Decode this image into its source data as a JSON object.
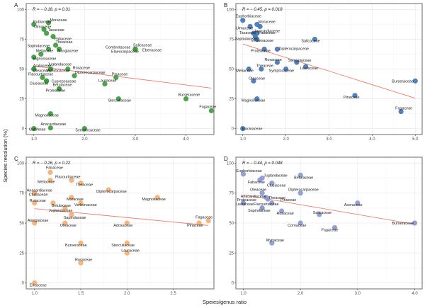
{
  "figure": {
    "ylabel": "Species resolution (%)",
    "xlabel": "Speies/genus ratio"
  },
  "chart_data": [
    {
      "type": "scatter",
      "panel": "A",
      "stat": "R = − 0.18, p = 0.31",
      "color": "#3a9a3a",
      "xlim": [
        0.85,
        4.55
      ],
      "ylim": [
        -5,
        105
      ],
      "xticks": [
        1.0,
        2.0,
        3.0,
        4.0
      ],
      "xtick_labels": [
        "1.0",
        "2.0",
        "3.0",
        "4.0"
      ],
      "yticks": [
        0,
        25,
        50,
        75,
        100
      ],
      "ytick_labels": [
        "0",
        "25",
        "50",
        "75",
        "100"
      ],
      "grid": true,
      "trend": {
        "x": [
          1.0,
          4.5
        ],
        "y": [
          52.5,
          34
        ]
      },
      "points": [
        {
          "name": "Rubiaceae",
          "x": 1.0,
          "y": 87.5
        },
        {
          "name": "Moraceae",
          "x": 1.29,
          "y": 88.9
        },
        {
          "name": "Ulmaceae",
          "x": 1.2,
          "y": 83.3
        },
        {
          "name": "Taxaceae",
          "x": 1.25,
          "y": 80
        },
        {
          "name": "Fabaceae",
          "x": 1.38,
          "y": 77.3
        },
        {
          "name": "Theaceae",
          "x": 1.43,
          "y": 70
        },
        {
          "name": "Sapindaceae",
          "x": 1.29,
          "y": 66.7
        },
        {
          "name": "Alangiaceae",
          "x": 1.5,
          "y": 66.7
        },
        {
          "name": "Meliaceae",
          "x": 1.14,
          "y": 62.5
        },
        {
          "name": "Bignoniaceae",
          "x": 1.0,
          "y": 60
        },
        {
          "name": "Araliaceae",
          "x": 1.0,
          "y": 50
        },
        {
          "name": "Oleaceae",
          "x": 1.0,
          "y": 50
        },
        {
          "name": "Juglandaceae",
          "x": 1.33,
          "y": 50
        },
        {
          "name": "Myristicaceae",
          "x": 1.33,
          "y": 50
        },
        {
          "name": "Rosaceae",
          "x": 1.67,
          "y": 50
        },
        {
          "name": "Flacourtiaceae",
          "x": 1.17,
          "y": 42.9
        },
        {
          "name": "Dipterocarpaceae",
          "x": 1.8,
          "y": 44.4
        },
        {
          "name": "Pinaceae",
          "x": 2.62,
          "y": 42.9
        },
        {
          "name": "Clusiaceae",
          "x": 1.25,
          "y": 40
        },
        {
          "name": "Cupressaceae",
          "x": 1.25,
          "y": 40
        },
        {
          "name": "Lauraceae",
          "x": 2.4,
          "y": 37.5
        },
        {
          "name": "Betulaceae",
          "x": 1.5,
          "y": 33.3
        },
        {
          "name": "Proteaceae",
          "x": 1.5,
          "y": 33.3
        },
        {
          "name": "Combretaceae",
          "x": 3.0,
          "y": 66.7
        },
        {
          "name": "Salicaceae",
          "x": 3.0,
          "y": 66.7
        },
        {
          "name": "Elaeocarpaceae",
          "x": 3.0,
          "y": 66.7
        },
        {
          "name": "Ebenaceae",
          "x": 3.0,
          "y": 66.7
        },
        {
          "name": "Burseraceae",
          "x": 4.0,
          "y": 25
        },
        {
          "name": "Sterculiaceae",
          "x": 2.67,
          "y": 25
        },
        {
          "name": "Fagaceae",
          "x": 4.5,
          "y": 15
        },
        {
          "name": "Magnoliaceae",
          "x": 1.33,
          "y": 12.5
        },
        {
          "name": "Guttiferae",
          "x": 1.0,
          "y": 0
        },
        {
          "name": "Anacardiaceae",
          "x": 1.33,
          "y": 0.5
        },
        {
          "name": "Symplocaceae",
          "x": 2.0,
          "y": 0
        }
      ]
    },
    {
      "type": "scatter",
      "panel": "B",
      "stat": "R = − 0.45, p = 0.018",
      "color": "#3f74b4",
      "xlim": [
        0.84,
        5.16
      ],
      "ylim": [
        -5,
        105
      ],
      "xticks": [
        1.0,
        2.0,
        3.0,
        4.0,
        5.0
      ],
      "xtick_labels": [
        "1.0",
        "2.0",
        "3.0",
        "4.0",
        "5.0"
      ],
      "yticks": [
        0,
        25,
        50,
        75,
        100
      ],
      "ytick_labels": [
        "0",
        "25",
        "50",
        "75",
        "100"
      ],
      "grid": true,
      "trend": {
        "x": [
          1.0,
          5.0
        ],
        "y": [
          71,
          25.5
        ]
      },
      "points": [
        {
          "name": "Euphorbiaceae",
          "x": 1.0,
          "y": 90.9
        },
        {
          "name": "Moraceae",
          "x": 1.33,
          "y": 87.5
        },
        {
          "name": "Ulmaceae",
          "x": 1.17,
          "y": 85.7
        },
        {
          "name": "Anacardiaceae",
          "x": 1.4,
          "y": 85.7
        },
        {
          "name": "Taxaceae",
          "x": 1.25,
          "y": 80
        },
        {
          "name": "Fabaceae",
          "x": 1.33,
          "y": 80
        },
        {
          "name": "Sapindaceae",
          "x": 1.33,
          "y": 75
        },
        {
          "name": "Verbenaceae",
          "x": 1.29,
          "y": 77
        },
        {
          "name": "Salicaceae",
          "x": 2.67,
          "y": 75
        },
        {
          "name": "Proteaceae",
          "x": 1.5,
          "y": 66.7
        },
        {
          "name": "Dipterocarpaceae",
          "x": 1.8,
          "y": 66.7
        },
        {
          "name": "Rosaceae",
          "x": 1.8,
          "y": 55.6
        },
        {
          "name": "Sterculiaceae",
          "x": 2.25,
          "y": 55.6
        },
        {
          "name": "Lauraceae",
          "x": 2.46,
          "y": 52
        },
        {
          "name": "Meliaceae",
          "x": 1.14,
          "y": 50
        },
        {
          "name": "Theaceae",
          "x": 1.43,
          "y": 50
        },
        {
          "name": "Symplocaceae",
          "x": 2.0,
          "y": 50
        },
        {
          "name": "Oleaceae",
          "x": 1.25,
          "y": 40
        },
        {
          "name": "Burseraceae",
          "x": 5.0,
          "y": 40
        },
        {
          "name": "Pinaceae",
          "x": 3.6,
          "y": 27.8
        },
        {
          "name": "Magnoliaceae",
          "x": 1.33,
          "y": 25
        },
        {
          "name": "Fagaceae",
          "x": 4.67,
          "y": 14.3
        },
        {
          "name": "Icacinaceae",
          "x": 1.0,
          "y": 0
        }
      ]
    },
    {
      "type": "scatter",
      "panel": "C",
      "stat": "R = − 0.26, p = 0.22",
      "color": "#f5ad6a",
      "xlim": [
        0.91,
        2.94
      ],
      "ylim": [
        -5,
        105
      ],
      "xticks": [
        1.0,
        1.5,
        2.0,
        2.5
      ],
      "xtick_labels": [
        "1.0",
        "1.5",
        "2.0",
        "2.5"
      ],
      "yticks": [
        0,
        25,
        50,
        75,
        100
      ],
      "ytick_labels": [
        "0",
        "25",
        "50",
        "75",
        "100"
      ],
      "grid": true,
      "trend": {
        "x": [
          1.0,
          2.88
        ],
        "y": [
          62,
          48
        ]
      },
      "points": [
        {
          "name": "Fabaceae",
          "x": 1.17,
          "y": 92.3
        },
        {
          "name": "Flacourtiaceae",
          "x": 1.4,
          "y": 85.7
        },
        {
          "name": "Meliaceae",
          "x": 1.17,
          "y": 85.7
        },
        {
          "name": "Theaceae",
          "x": 1.5,
          "y": 83.3
        },
        {
          "name": "Dipterocarpaceae",
          "x": 1.8,
          "y": 77.8
        },
        {
          "name": "Anacardiaceae",
          "x": 1.0,
          "y": 75
        },
        {
          "name": "Clusiaceae",
          "x": 1.0,
          "y": 75
        },
        {
          "name": "Magnoliaceae",
          "x": 2.33,
          "y": 71.4
        },
        {
          "name": "Moraceae",
          "x": 1.4,
          "y": 71.4
        },
        {
          "name": "Rutaceae",
          "x": 1.0,
          "y": 66.7
        },
        {
          "name": "Betulaceae",
          "x": 1.2,
          "y": 66.7
        },
        {
          "name": "Verbenaceae",
          "x": 1.5,
          "y": 66.7
        },
        {
          "name": "Juglandaceae",
          "x": 1.33,
          "y": 62.5
        },
        {
          "name": "Sapindaceae",
          "x": 1.4,
          "y": 57.1
        },
        {
          "name": "Alangiaceae",
          "x": 1.0,
          "y": 50
        },
        {
          "name": "Oleaceae",
          "x": 1.33,
          "y": 50
        },
        {
          "name": "Adoxaceae",
          "x": 2.0,
          "y": 50
        },
        {
          "name": "Fagaceae",
          "x": 2.88,
          "y": 52
        },
        {
          "name": "Pinaceae",
          "x": 2.78,
          "y": 50
        },
        {
          "name": "Burseraceae",
          "x": 1.5,
          "y": 33.3
        },
        {
          "name": "Sterculiaceae",
          "x": 2.0,
          "y": 33.3
        },
        {
          "name": "Lauraceae",
          "x": 2.0,
          "y": 25
        },
        {
          "name": "Rosaceae",
          "x": 1.5,
          "y": 16.7
        },
        {
          "name": "Ericaceae",
          "x": 1.0,
          "y": 0
        }
      ]
    },
    {
      "type": "scatter",
      "panel": "D",
      "stat": "R = − 0.44, p = 0.048",
      "color": "#8a97cf",
      "xlim": [
        0.87,
        4.13
      ],
      "ylim": [
        -5,
        105
      ],
      "xticks": [
        1.0,
        2.0,
        3.0,
        4.0
      ],
      "xtick_labels": [
        "1.0",
        "2.0",
        "3.0",
        "4.0"
      ],
      "yticks": [
        0,
        25,
        50,
        75,
        100
      ],
      "ytick_labels": [
        "0",
        "25",
        "50",
        "75",
        "100"
      ],
      "grid": true,
      "trend": {
        "x": [
          1.0,
          4.0
        ],
        "y": [
          73.5,
          49
        ]
      },
      "points": [
        {
          "name": "Euphorbiaceae",
          "x": 1.0,
          "y": 90.9
        },
        {
          "name": "Betulaceae",
          "x": 2.0,
          "y": 90
        },
        {
          "name": "Juglandaceae",
          "x": 1.33,
          "y": 87.5
        },
        {
          "name": "Fabaceae",
          "x": 1.29,
          "y": 86
        },
        {
          "name": "Clusiaceae",
          "x": 1.5,
          "y": 83.3
        },
        {
          "name": "Oleaceae",
          "x": 1.33,
          "y": 75
        },
        {
          "name": "Dipterocarpaceae",
          "x": 2.0,
          "y": 75
        },
        {
          "name": "Anacardiaceae",
          "x": 1.4,
          "y": 71.4
        },
        {
          "name": "Theaceae",
          "x": 1.43,
          "y": 70
        },
        {
          "name": "Proteaceae",
          "x": 1.0,
          "y": 66.7
        },
        {
          "name": "Lauraceae",
          "x": 1.0,
          "y": 66.7
        },
        {
          "name": "Pinaceae",
          "x": 1.5,
          "y": 66.7
        },
        {
          "name": "Flacourtiaceae",
          "x": 1.33,
          "y": 62.5
        },
        {
          "name": "Sapindaceae",
          "x": 1.33,
          "y": 62.5
        },
        {
          "name": "Aceraceae",
          "x": 3.0,
          "y": 66.7
        },
        {
          "name": "Rosaceae",
          "x": 1.67,
          "y": 60
        },
        {
          "name": "Salicaceae",
          "x": 2.33,
          "y": 57.1
        },
        {
          "name": "Cornaceae",
          "x": 2.0,
          "y": 50
        },
        {
          "name": "Burseraceae",
          "x": 4.0,
          "y": 50
        },
        {
          "name": "Fagaceae",
          "x": 2.6,
          "y": 46.2
        },
        {
          "name": "Myrtaceae",
          "x": 1.5,
          "y": 33.3
        }
      ]
    }
  ]
}
